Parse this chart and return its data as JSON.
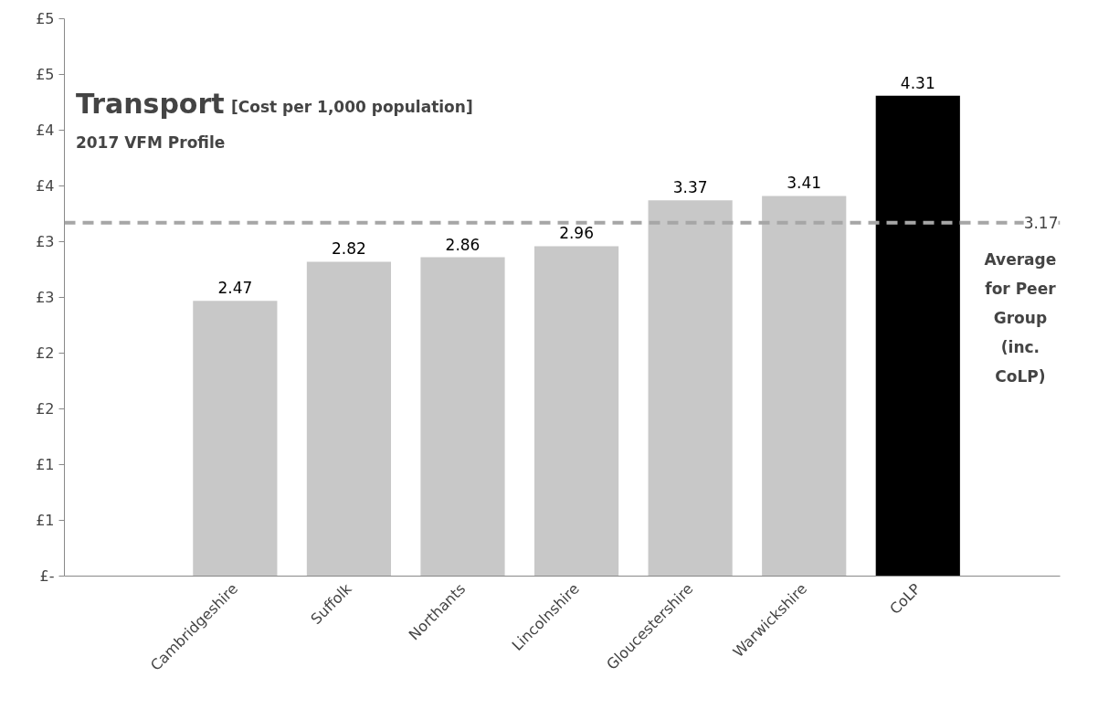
{
  "chart_data": {
    "type": "bar",
    "title": "Transport",
    "subtitle": "[Cost per 1,000 population]",
    "categories": [
      null,
      "Cambridgeshire",
      "Suffolk",
      "Northants",
      "Lincolnshire",
      "Gloucestershire",
      "Warwickshire",
      "CoLP"
    ],
    "values": [
      null,
      2.47,
      2.82,
      2.86,
      2.96,
      3.37,
      3.41,
      4.31
    ],
    "colors": [
      "#c8c8c8",
      "#c8c8c8",
      "#c8c8c8",
      "#c8c8c8",
      "#c8c8c8",
      "#c8c8c8",
      "#c8c8c8",
      "#000000"
    ],
    "data_labels": true,
    "ylim": [
      0,
      5
    ],
    "yticks": [
      {
        "value": 0,
        "label": "£-"
      },
      {
        "value": 0.5,
        "label": "£1"
      },
      {
        "value": 1,
        "label": "£1"
      },
      {
        "value": 1.5,
        "label": "£2"
      },
      {
        "value": 2,
        "label": "£2"
      },
      {
        "value": 2.5,
        "label": "£3"
      },
      {
        "value": 3,
        "label": "£3"
      },
      {
        "value": 3.5,
        "label": "£4"
      },
      {
        "value": 4,
        "label": "£4"
      },
      {
        "value": 4.5,
        "label": "£5"
      },
      {
        "value": 5,
        "label": "£5"
      }
    ],
    "ref_lines": [
      {
        "axis": "y",
        "value": 3.17,
        "label": "3.17",
        "color": "#a6a6a6",
        "line_style": "dashed"
      }
    ],
    "annotations": [
      "2017 VFM Profile",
      "Average for Peer Group (inc. CoLP)"
    ]
  }
}
